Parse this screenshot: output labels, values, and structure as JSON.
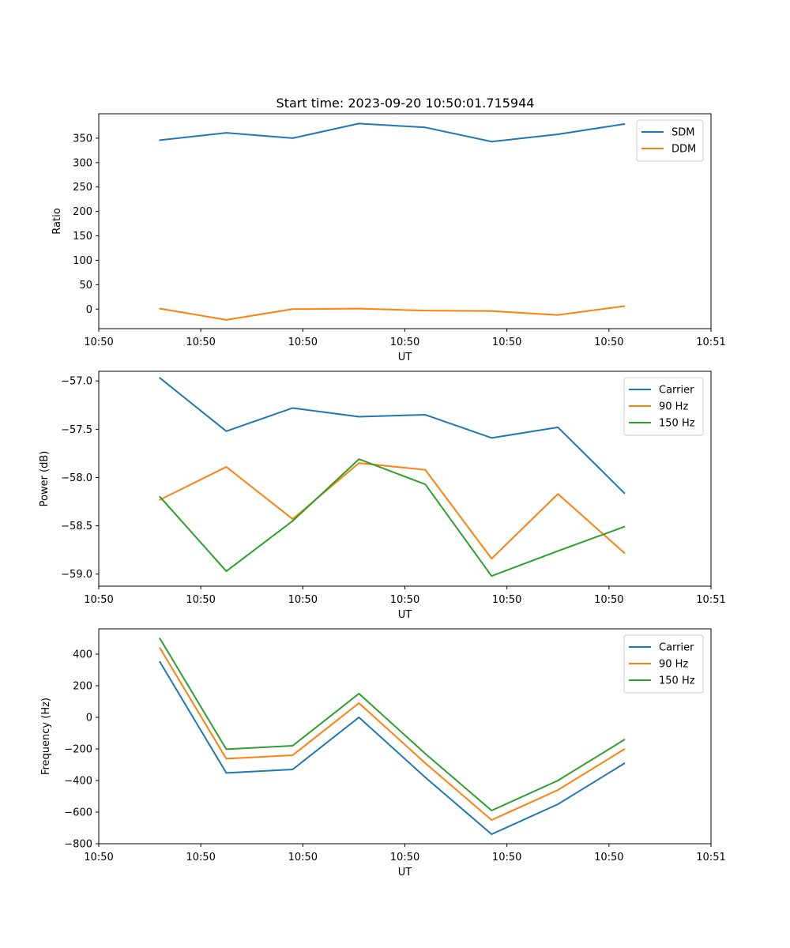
{
  "figure": {
    "title": "Start time: 2023-09-20 10:50:01.715944"
  },
  "chart_data": [
    {
      "type": "line",
      "title": "Start time: 2023-09-20 10:50:01.715944",
      "xlabel": "UT",
      "ylabel": "Ratio",
      "x": [
        0.6,
        1.25,
        1.9,
        2.55,
        3.2,
        3.85,
        4.5,
        5.15
      ],
      "xlim": [
        0,
        6
      ],
      "xticks": [
        0,
        1,
        2,
        3,
        4,
        5,
        6
      ],
      "xtick_labels": [
        "10:50",
        "10:50",
        "10:50",
        "10:50",
        "10:50",
        "10:50",
        "10:51"
      ],
      "ylim": [
        -40,
        400
      ],
      "yticks": [
        0,
        50,
        100,
        150,
        200,
        250,
        300,
        350
      ],
      "ytick_labels": [
        "0",
        "50",
        "100",
        "150",
        "200",
        "250",
        "300",
        "350"
      ],
      "legend_position": "top-right",
      "grid": false,
      "series": [
        {
          "name": "SDM",
          "color": "#1f77b4",
          "values": [
            346,
            361,
            350,
            380,
            372,
            343,
            358,
            379
          ]
        },
        {
          "name": "DDM",
          "color": "#ff7f0e",
          "values": [
            1,
            -22,
            0,
            1,
            -3,
            -4,
            -12,
            6
          ]
        }
      ]
    },
    {
      "type": "line",
      "xlabel": "UT",
      "ylabel": "Power (dB)",
      "x": [
        0.6,
        1.25,
        1.9,
        2.55,
        3.2,
        3.85,
        4.5,
        5.15
      ],
      "xlim": [
        0,
        6
      ],
      "xticks": [
        0,
        1,
        2,
        3,
        4,
        5,
        6
      ],
      "xtick_labels": [
        "10:50",
        "10:50",
        "10:50",
        "10:50",
        "10:50",
        "10:50",
        "10:51"
      ],
      "ylim": [
        -59.125,
        -56.9
      ],
      "yticks": [
        -59.0,
        -58.5,
        -58.0,
        -57.5,
        -57.0
      ],
      "ytick_labels": [
        "−59.0",
        "−58.5",
        "−58.0",
        "−57.5",
        "−57.0"
      ],
      "legend_position": "top-right",
      "grid": false,
      "series": [
        {
          "name": "Carrier",
          "color": "#1f77b4",
          "values": [
            -56.97,
            -57.52,
            -57.28,
            -57.37,
            -57.35,
            -57.59,
            -57.48,
            -58.16
          ]
        },
        {
          "name": "90 Hz",
          "color": "#ff7f0e",
          "values": [
            -58.23,
            -57.89,
            -58.43,
            -57.85,
            -57.92,
            -58.84,
            -58.17,
            -58.78
          ]
        },
        {
          "name": "150 Hz",
          "color": "#2ca02c",
          "values": [
            -58.2,
            -58.97,
            -58.45,
            -57.81,
            -58.07,
            -59.02,
            -58.76,
            -58.51
          ]
        }
      ]
    },
    {
      "type": "line",
      "xlabel": "UT",
      "ylabel": "Frequency (Hz)",
      "x": [
        0.6,
        1.25,
        1.9,
        2.55,
        3.2,
        3.85,
        4.5,
        5.15
      ],
      "xlim": [
        0,
        6
      ],
      "xticks": [
        0,
        1,
        2,
        3,
        4,
        5,
        6
      ],
      "xtick_labels": [
        "10:50",
        "10:50",
        "10:50",
        "10:50",
        "10:50",
        "10:50",
        "10:51"
      ],
      "ylim": [
        -800,
        560
      ],
      "yticks": [
        -800,
        -600,
        -400,
        -200,
        0,
        200,
        400
      ],
      "ytick_labels": [
        "−800",
        "−600",
        "−400",
        "−200",
        "0",
        "200",
        "400"
      ],
      "legend_position": "top-right",
      "grid": false,
      "series": [
        {
          "name": "Carrier",
          "color": "#1f77b4",
          "values": [
            350,
            -352,
            -330,
            0,
            -380,
            -740,
            -550,
            -292
          ]
        },
        {
          "name": "90 Hz",
          "color": "#ff7f0e",
          "values": [
            438,
            -262,
            -240,
            90,
            -290,
            -650,
            -460,
            -202
          ]
        },
        {
          "name": "150 Hz",
          "color": "#2ca02c",
          "values": [
            498,
            -202,
            -180,
            150,
            -230,
            -590,
            -400,
            -142
          ]
        }
      ]
    }
  ]
}
